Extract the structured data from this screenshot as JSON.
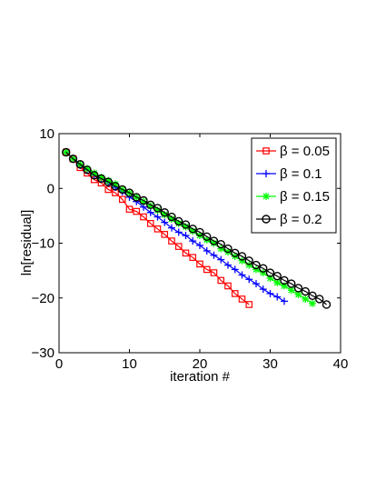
{
  "chart_data": {
    "type": "line",
    "title": "",
    "xlabel": "iteration #",
    "ylabel": "ln[residual]",
    "xlim": [
      0,
      40
    ],
    "ylim": [
      -30,
      10
    ],
    "xticks": [
      0,
      10,
      20,
      30,
      40
    ],
    "yticks": [
      -30,
      -20,
      -10,
      0,
      10
    ],
    "grid": false,
    "legend_position": "top-right",
    "series": [
      {
        "name": "β = 0.05",
        "color": "#ff0000",
        "marker": "square",
        "x": [
          1,
          2,
          3,
          4,
          5,
          6,
          7,
          8,
          9,
          10,
          11,
          12,
          13,
          14,
          15,
          16,
          17,
          18,
          19,
          20,
          21,
          22,
          23,
          24,
          25,
          26,
          27
        ],
        "y": [
          6.6,
          5.4,
          3.8,
          2.8,
          1.6,
          1.0,
          -0.2,
          -0.8,
          -2.0,
          -3.8,
          -4.2,
          -5.2,
          -6.4,
          -7.4,
          -8.4,
          -9.6,
          -10.6,
          -11.8,
          -12.6,
          -13.8,
          -14.8,
          -15.4,
          -16.8,
          -17.8,
          -19.2,
          -20.2,
          -21.2
        ]
      },
      {
        "name": "β = 0.1",
        "color": "#0000ff",
        "marker": "plus",
        "x": [
          1,
          2,
          3,
          4,
          5,
          6,
          7,
          8,
          9,
          10,
          11,
          12,
          13,
          14,
          15,
          16,
          17,
          18,
          19,
          20,
          21,
          22,
          23,
          24,
          25,
          26,
          27,
          28,
          29,
          30,
          31,
          32
        ],
        "y": [
          6.6,
          5.4,
          4.2,
          3.4,
          2.4,
          1.8,
          1.0,
          0.2,
          -0.6,
          -1.6,
          -2.4,
          -3.4,
          -4.4,
          -5.2,
          -6.2,
          -7.2,
          -8.0,
          -8.6,
          -9.6,
          -10.4,
          -11.4,
          -12.2,
          -13.0,
          -14.0,
          -14.8,
          -15.8,
          -16.6,
          -17.4,
          -18.4,
          -19.2,
          -19.8,
          -20.6
        ]
      },
      {
        "name": "β = 0.15",
        "color": "#00ff00",
        "marker": "star",
        "x": [
          1,
          2,
          3,
          4,
          5,
          6,
          7,
          8,
          9,
          10,
          11,
          12,
          13,
          14,
          15,
          16,
          17,
          18,
          19,
          20,
          21,
          22,
          23,
          24,
          25,
          26,
          27,
          28,
          29,
          30,
          31,
          32,
          33,
          34,
          35,
          36
        ],
        "y": [
          6.6,
          5.4,
          4.4,
          3.6,
          2.8,
          2.0,
          1.4,
          0.8,
          -0.2,
          -0.8,
          -1.6,
          -2.4,
          -3.2,
          -4.0,
          -4.8,
          -5.6,
          -6.4,
          -7.0,
          -7.8,
          -8.6,
          -9.4,
          -10.0,
          -11.0,
          -11.6,
          -12.4,
          -13.2,
          -14.0,
          -14.8,
          -15.4,
          -16.4,
          -17.2,
          -17.8,
          -18.6,
          -19.4,
          -20.2,
          -21.0
        ]
      },
      {
        "name": "β = 0.2",
        "color": "#000000",
        "marker": "circle",
        "x": [
          1,
          2,
          3,
          4,
          5,
          6,
          7,
          8,
          9,
          10,
          11,
          12,
          13,
          14,
          15,
          16,
          17,
          18,
          19,
          20,
          21,
          22,
          23,
          24,
          25,
          26,
          27,
          28,
          29,
          30,
          31,
          32,
          33,
          34,
          35,
          36,
          37,
          38
        ],
        "y": [
          6.6,
          5.4,
          4.4,
          3.4,
          2.4,
          1.8,
          1.2,
          0.4,
          -0.2,
          -0.8,
          -1.6,
          -2.2,
          -3.0,
          -3.6,
          -4.4,
          -5.2,
          -6.0,
          -6.6,
          -7.4,
          -8.0,
          -8.8,
          -9.6,
          -10.2,
          -11.0,
          -11.8,
          -12.4,
          -13.2,
          -14.0,
          -14.6,
          -15.4,
          -16.0,
          -16.8,
          -17.4,
          -18.2,
          -18.8,
          -19.6,
          -20.2,
          -21.2
        ]
      }
    ]
  }
}
